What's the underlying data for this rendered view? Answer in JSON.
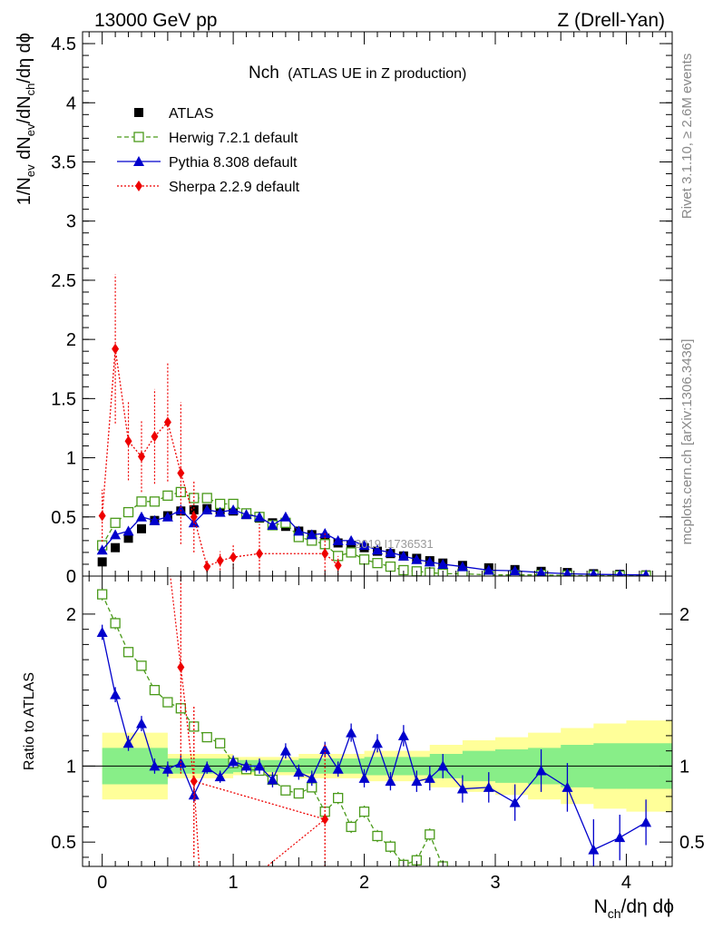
{
  "header": {
    "energy": "13000 GeV pp",
    "process": "Z (Drell-Yan)"
  },
  "side_text": {
    "rivet": "Rivet 3.1.10, ≥ 2.6M events",
    "source": "mcplots.cern.ch [arXiv:1306.3436]"
  },
  "watermark": "2019  I1736531",
  "chart_data": [
    {
      "type": "scatter",
      "title_main": "Nch",
      "title_sub": "(ATLAS UE in Z production)",
      "ylabel": "1/N_ev dN_ev/dN_ch/dη dϕ",
      "xlim": [
        -0.15,
        4.35
      ],
      "ylim": [
        0,
        4.6
      ],
      "yticks": [
        "0",
        "0.5",
        "1",
        "1.5",
        "2",
        "2.5",
        "3",
        "3.5",
        "4",
        "4.5"
      ],
      "legend_position": "top-left",
      "series": [
        {
          "name": "ATLAS",
          "style": "data",
          "color": "#000000",
          "x": [
            0.0,
            0.1,
            0.2,
            0.3,
            0.4,
            0.5,
            0.6,
            0.7,
            0.8,
            0.9,
            1.0,
            1.1,
            1.2,
            1.3,
            1.4,
            1.5,
            1.6,
            1.7,
            1.8,
            1.9,
            2.0,
            2.1,
            2.2,
            2.3,
            2.4,
            2.5,
            2.6,
            2.75,
            2.95,
            3.15,
            3.35,
            3.55,
            3.75,
            3.95,
            4.15
          ],
          "y": [
            0.12,
            0.24,
            0.32,
            0.4,
            0.47,
            0.51,
            0.55,
            0.56,
            0.57,
            0.56,
            0.55,
            0.52,
            0.49,
            0.45,
            0.42,
            0.38,
            0.35,
            0.32,
            0.28,
            0.26,
            0.24,
            0.21,
            0.19,
            0.17,
            0.15,
            0.13,
            0.11,
            0.09,
            0.07,
            0.055,
            0.04,
            0.03,
            0.02,
            0.015,
            0.01
          ]
        },
        {
          "name": "Herwig 7.2.1 default",
          "style": "herwig",
          "color": "#4a9a1a",
          "x": [
            0.0,
            0.1,
            0.2,
            0.3,
            0.4,
            0.5,
            0.6,
            0.7,
            0.8,
            0.9,
            1.0,
            1.1,
            1.2,
            1.3,
            1.4,
            1.5,
            1.6,
            1.7,
            1.8,
            1.9,
            2.0,
            2.1,
            2.2,
            2.3,
            2.4,
            2.5,
            2.6,
            2.75,
            2.95,
            3.15,
            3.35,
            3.55,
            3.75,
            3.95,
            4.15
          ],
          "y": [
            0.26,
            0.45,
            0.54,
            0.63,
            0.63,
            0.68,
            0.71,
            0.66,
            0.66,
            0.61,
            0.61,
            0.53,
            0.5,
            0.43,
            0.45,
            0.33,
            0.3,
            0.27,
            0.17,
            0.2,
            0.14,
            0.11,
            0.08,
            0.05,
            0.04,
            0.03,
            0.02,
            0.02,
            0.01,
            0.01,
            0.01,
            0.005,
            0.005,
            0.003,
            0.002
          ]
        },
        {
          "name": "Pythia 8.308 default",
          "style": "pythia",
          "color": "#0000cc",
          "x": [
            0.0,
            0.1,
            0.2,
            0.3,
            0.4,
            0.5,
            0.6,
            0.7,
            0.8,
            0.9,
            1.0,
            1.1,
            1.2,
            1.3,
            1.4,
            1.5,
            1.6,
            1.7,
            1.8,
            1.9,
            2.0,
            2.1,
            2.2,
            2.3,
            2.4,
            2.5,
            2.6,
            2.75,
            2.95,
            3.15,
            3.35,
            3.55,
            3.75,
            3.95,
            4.15
          ],
          "y": [
            0.22,
            0.35,
            0.38,
            0.5,
            0.47,
            0.5,
            0.56,
            0.45,
            0.56,
            0.54,
            0.56,
            0.52,
            0.5,
            0.43,
            0.5,
            0.38,
            0.35,
            0.36,
            0.3,
            0.3,
            0.26,
            0.22,
            0.2,
            0.17,
            0.14,
            0.12,
            0.1,
            0.08,
            0.05,
            0.045,
            0.03,
            0.02,
            0.015,
            0.012,
            0.01
          ]
        },
        {
          "name": "Sherpa 2.2.9 default",
          "style": "sherpa",
          "color": "#ee0000",
          "x": [
            0.0,
            0.1,
            0.2,
            0.3,
            0.4,
            0.5,
            0.6,
            0.7,
            0.8,
            0.9,
            1.0,
            1.2,
            1.7,
            1.8
          ],
          "y": [
            0.51,
            1.92,
            1.14,
            1.01,
            1.18,
            1.3,
            0.87,
            0.5,
            0.08,
            0.13,
            0.16,
            0.19,
            0.19,
            0.09
          ],
          "err": [
            0.22,
            0.63,
            0.33,
            0.3,
            0.4,
            0.5,
            0.6,
            0.3,
            0.05,
            0.08,
            0.1,
            0.25,
            0.18,
            0.08
          ]
        }
      ],
      "xticks": [
        "0",
        "1",
        "2",
        "3",
        "4"
      ]
    },
    {
      "type": "scatter",
      "ylabel": "Ratio to ATLAS",
      "xlabel": "N_ch/dη dϕ",
      "xlim": [
        -0.15,
        4.35
      ],
      "ylim": [
        0.34,
        2.25
      ],
      "yticks": [
        "0.5",
        "1",
        "2"
      ],
      "xticks": [
        "0",
        "1",
        "2",
        "3",
        "4"
      ],
      "band_x": [
        0.0,
        0.5,
        1.0,
        1.5,
        2.0,
        2.5,
        2.75,
        3.0,
        3.25,
        3.5,
        3.75,
        4.0,
        4.35
      ],
      "band_inner": [
        0.12,
        0.05,
        0.04,
        0.05,
        0.06,
        0.08,
        0.1,
        0.11,
        0.12,
        0.14,
        0.15,
        0.15,
        0.15
      ],
      "band_outer": [
        0.22,
        0.08,
        0.06,
        0.08,
        0.1,
        0.14,
        0.17,
        0.19,
        0.22,
        0.25,
        0.28,
        0.3,
        0.3
      ],
      "series": [
        {
          "name": "Herwig 7.2.1 default",
          "style": "herwig",
          "color": "#4a9a1a",
          "x": [
            0.0,
            0.1,
            0.2,
            0.3,
            0.4,
            0.5,
            0.6,
            0.7,
            0.8,
            0.9,
            1.0,
            1.1,
            1.2,
            1.3,
            1.4,
            1.5,
            1.6,
            1.7,
            1.8,
            1.9,
            2.0,
            2.1,
            2.2,
            2.3,
            2.4,
            2.5,
            2.6
          ],
          "y": [
            2.13,
            1.94,
            1.75,
            1.66,
            1.5,
            1.42,
            1.38,
            1.26,
            1.19,
            1.15,
            1.02,
            0.98,
            0.97,
            0.91,
            0.84,
            0.82,
            0.86,
            0.7,
            0.79,
            0.6,
            0.7,
            0.54,
            0.47,
            0.35,
            0.38,
            0.55,
            0.34
          ],
          "err": [
            0.04,
            0.04,
            0.03,
            0.03,
            0.03,
            0.03,
            0.03,
            0.03,
            0.03,
            0.03,
            0.03,
            0.03,
            0.03,
            0.03,
            0.03,
            0.03,
            0.03,
            0.03,
            0.04,
            0.04,
            0.04,
            0.04,
            0.04,
            0.04,
            0.04,
            0.04,
            0.04
          ]
        },
        {
          "name": "Pythia 8.308 default",
          "style": "pythia",
          "color": "#0000cc",
          "x": [
            0.0,
            0.1,
            0.2,
            0.3,
            0.4,
            0.5,
            0.6,
            0.7,
            0.8,
            0.9,
            1.0,
            1.1,
            1.2,
            1.3,
            1.4,
            1.5,
            1.6,
            1.7,
            1.8,
            1.9,
            2.0,
            2.1,
            2.2,
            2.3,
            2.4,
            2.5,
            2.6,
            2.75,
            2.95,
            3.15,
            3.35,
            3.55,
            3.75,
            3.95,
            4.15
          ],
          "y": [
            1.88,
            1.47,
            1.15,
            1.28,
            1.0,
            0.98,
            1.02,
            0.81,
            0.99,
            0.93,
            1.03,
            1.0,
            1.0,
            0.91,
            1.1,
            0.96,
            0.92,
            1.11,
            0.98,
            1.22,
            0.92,
            1.15,
            0.9,
            1.2,
            0.9,
            0.92,
            1.0,
            0.85,
            0.86,
            0.76,
            0.97,
            0.86,
            0.45,
            0.53,
            0.63
          ],
          "err": [
            0.05,
            0.05,
            0.05,
            0.05,
            0.05,
            0.05,
            0.05,
            0.05,
            0.04,
            0.04,
            0.04,
            0.04,
            0.05,
            0.05,
            0.05,
            0.05,
            0.05,
            0.05,
            0.05,
            0.06,
            0.06,
            0.06,
            0.06,
            0.07,
            0.07,
            0.08,
            0.08,
            0.09,
            0.1,
            0.12,
            0.14,
            0.16,
            0.2,
            0.15,
            0.15
          ]
        },
        {
          "name": "Sherpa 2.2.9 default",
          "style": "sherpa",
          "color": "#ee0000",
          "x": [
            0.6,
            0.7,
            1.7
          ],
          "y": [
            1.65,
            0.9,
            0.65
          ],
          "err": [
            0.7,
            0.5,
            0.5
          ]
        }
      ]
    }
  ]
}
